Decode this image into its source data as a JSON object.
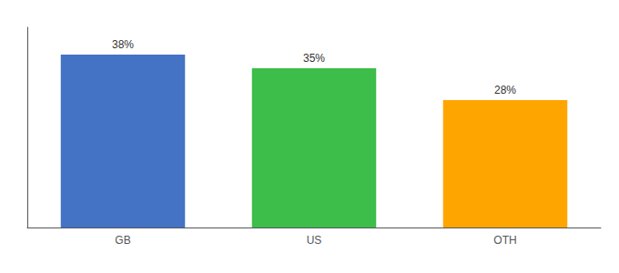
{
  "chart_data": {
    "type": "bar",
    "categories": [
      "GB",
      "US",
      "OTH"
    ],
    "values": [
      38,
      35,
      28
    ],
    "value_labels": [
      "38%",
      "35%",
      "28%"
    ],
    "colors": [
      "#4472C4",
      "#3DBD4A",
      "#FFA500"
    ],
    "ylim": [
      0,
      44
    ],
    "grid": false,
    "data_labels": true,
    "tick_labels": "x"
  }
}
